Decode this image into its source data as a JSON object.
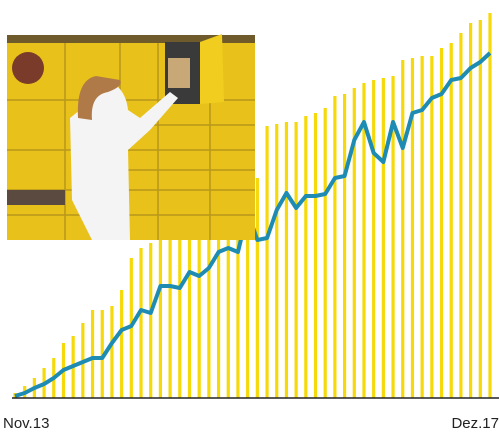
{
  "chart_data": {
    "type": "bar-line",
    "categories": [
      "Nov.13",
      null,
      null,
      null,
      null,
      null,
      null,
      null,
      null,
      null,
      null,
      null,
      null,
      null,
      null,
      null,
      null,
      null,
      null,
      null,
      null,
      null,
      null,
      null,
      null,
      null,
      null,
      null,
      null,
      null,
      null,
      null,
      null,
      null,
      null,
      null,
      null,
      null,
      null,
      null,
      null,
      null,
      null,
      null,
      null,
      null,
      null,
      null,
      null,
      "Dez.17"
    ],
    "series": [
      {
        "color": "#f5d90a",
        "values": [
          5,
          12,
          20,
          30,
          40,
          55,
          62,
          75,
          88,
          88,
          92,
          108,
          140,
          150,
          155,
          168,
          170,
          175,
          180,
          185,
          188,
          190,
          195,
          200,
          210,
          220,
          272,
          274,
          276,
          276,
          282,
          285,
          290,
          302,
          304,
          310,
          315,
          318,
          320,
          322,
          338,
          340,
          342,
          342,
          350,
          355,
          365,
          375,
          378,
          385
        ]
      },
      {
        "color": "#1e8bb3",
        "values": [
          2,
          5,
          10,
          14,
          20,
          28,
          32,
          36,
          40,
          40,
          55,
          68,
          72,
          88,
          85,
          112,
          112,
          110,
          126,
          122,
          130,
          146,
          150,
          146,
          186,
          158,
          160,
          188,
          205,
          190,
          202,
          202,
          204,
          220,
          222,
          258,
          276,
          245,
          236,
          276,
          250,
          285,
          288,
          300,
          304,
          318,
          320,
          330,
          336,
          345
        ]
      }
    ],
    "ylim": [
      0,
      398
    ]
  }
}
